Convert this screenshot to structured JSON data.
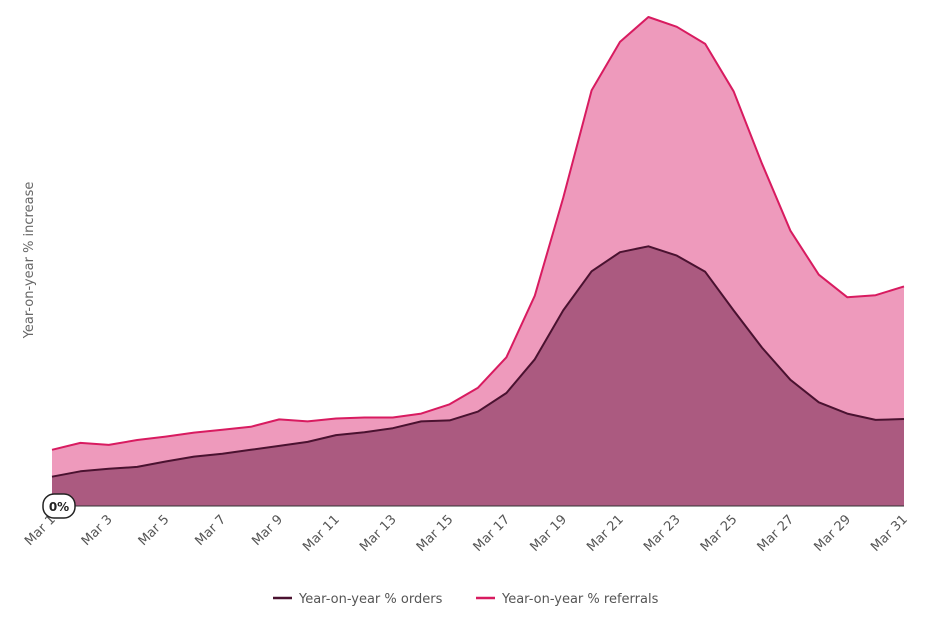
{
  "chart_data": {
    "type": "area",
    "ylabel": "Year-on-year % increase",
    "baseline_label": "0%",
    "categories": [
      "Mar 1",
      "Mar 2",
      "Mar 3",
      "Mar 4",
      "Mar 5",
      "Mar 6",
      "Mar 7",
      "Mar 8",
      "Mar 9",
      "Mar 10",
      "Mar 11",
      "Mar 12",
      "Mar 13",
      "Mar 14",
      "Mar 15",
      "Mar 16",
      "Mar 17",
      "Mar 18",
      "Mar 19",
      "Mar 20",
      "Mar 21",
      "Mar 22",
      "Mar 23",
      "Mar 24",
      "Mar 25",
      "Mar 26",
      "Mar 27",
      "Mar 28",
      "Mar 29",
      "Mar 30",
      "Mar 31"
    ],
    "tick_labels": [
      "Mar 1",
      "Mar 3",
      "Mar 5",
      "Mar 7",
      "Mar 9",
      "Mar 11",
      "Mar 13",
      "Mar 15",
      "Mar 17",
      "Mar 19",
      "Mar 21",
      "Mar 23",
      "Mar 25",
      "Mar 27",
      "Mar 29",
      "Mar 31"
    ],
    "ylim": [
      0,
      100
    ],
    "grid": false,
    "legend_position": "bottom",
    "series": [
      {
        "name": "Year-on-year % orders",
        "color": "#4a1230",
        "fill": "#ab5a80",
        "values": [
          6.0,
          7.1,
          7.6,
          8.0,
          9.1,
          10.1,
          10.7,
          11.5,
          12.3,
          13.1,
          14.5,
          15.1,
          15.9,
          17.3,
          17.5,
          19.3,
          23.1,
          30.0,
          40.0,
          48.0,
          51.9,
          53.1,
          51.2,
          47.9,
          40.0,
          32.4,
          25.8,
          21.2,
          18.9,
          17.6,
          17.8
        ]
      },
      {
        "name": "Year-on-year % referrals",
        "color": "#d81b60",
        "fill": "#ee9abc",
        "values": [
          11.5,
          12.9,
          12.5,
          13.5,
          14.2,
          15.0,
          15.6,
          16.2,
          17.7,
          17.3,
          17.9,
          18.1,
          18.1,
          18.9,
          20.8,
          24.2,
          30.4,
          43.0,
          63.0,
          85.0,
          94.9,
          100.0,
          98.0,
          94.5,
          84.8,
          70.0,
          56.3,
          47.3,
          42.7,
          43.1,
          44.9
        ]
      }
    ]
  }
}
